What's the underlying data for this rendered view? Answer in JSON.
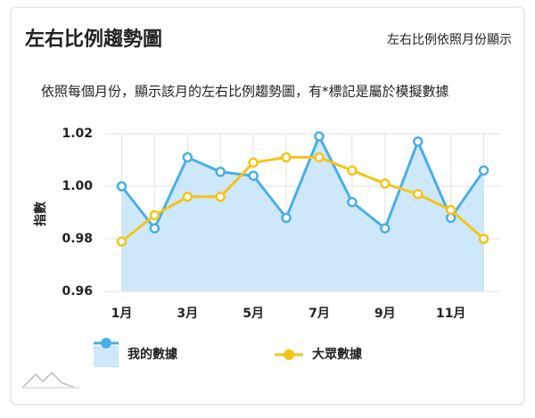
{
  "title": "左右比例趨勢圖",
  "subtitle": "左右比例依照月份顯示",
  "chart_data": {
    "type": "line",
    "title": "依照每個月份，顯示該月的左右比例趨勢圖，有*標記是屬於模擬數據",
    "y_label": "指數",
    "categories": [
      "1月",
      null,
      "3月",
      null,
      "5月",
      null,
      "7月",
      null,
      "9月",
      null,
      "11月",
      null
    ],
    "series": [
      {
        "name": "我的數據",
        "color": "#4aaee8",
        "fill": "#cde8fa",
        "area": true,
        "values": [
          1.0,
          0.984,
          1.011,
          1.0055,
          1.004,
          0.988,
          1.019,
          0.994,
          0.984,
          1.017,
          0.988,
          1.006
        ]
      },
      {
        "name": "大眾數據",
        "color": "#f5c518",
        "area": false,
        "values": [
          0.979,
          0.989,
          0.996,
          0.996,
          1.009,
          1.011,
          1.011,
          1.006,
          1.001,
          0.997,
          0.991,
          0.98
        ]
      }
    ],
    "ylim": [
      0.96,
      1.02
    ],
    "yticks": [
      0.96,
      0.98,
      {
        "value": 1,
        "label": "1.00"
      },
      1.02
    ],
    "grid": true,
    "legend": "bottom"
  }
}
